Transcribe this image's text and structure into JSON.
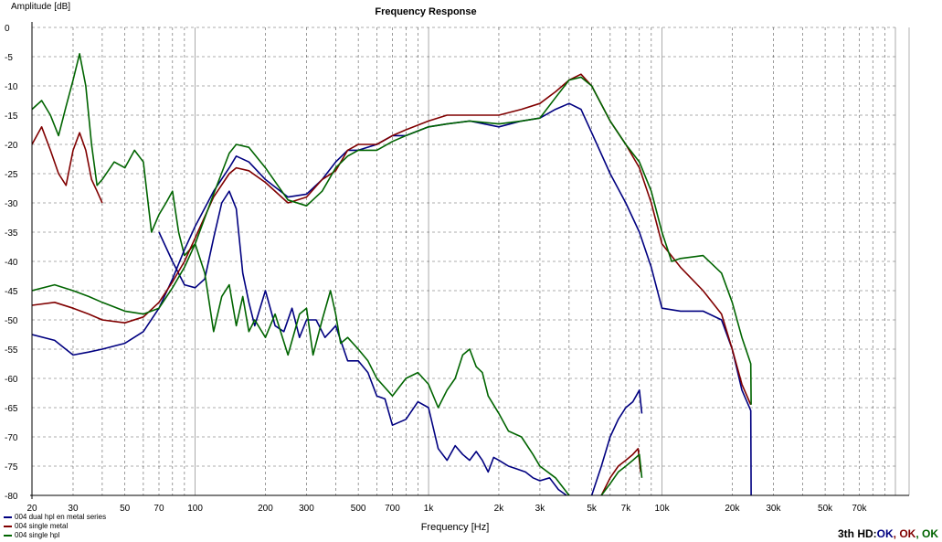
{
  "chart_data": {
    "type": "line",
    "title": "Frequency Response",
    "xlabel": "Frequency [Hz]",
    "ylabel": "Amplitude [dB]",
    "xscale": "log",
    "xlim": [
      20,
      100000
    ],
    "ylim": [
      -80,
      0
    ],
    "yticks": [
      0,
      -5,
      -10,
      -15,
      -20,
      -25,
      -30,
      -35,
      -40,
      -45,
      -50,
      -55,
      -60,
      -65,
      -70,
      -75,
      -80
    ],
    "yticklabels": [
      "0",
      "-5",
      "-10",
      "-15",
      "-20",
      "-25",
      "-30",
      "-35",
      "-40",
      "-45",
      "-50",
      "-55",
      "-60",
      "-65",
      "-70",
      "-75",
      "-80"
    ],
    "xticks": [
      20,
      30,
      50,
      70,
      100,
      200,
      300,
      500,
      700,
      1000,
      2000,
      3000,
      5000,
      7000,
      10000,
      20000,
      30000,
      50000,
      70000
    ],
    "xticklabels": [
      "20",
      "30",
      "50",
      "70",
      "100",
      "200",
      "300",
      "500",
      "700",
      "1k",
      "2k",
      "3k",
      "5k",
      "7k",
      "10k",
      "20k",
      "30k",
      "50k",
      "70k"
    ],
    "grid": true,
    "legend_position": "bottom-left",
    "series": [
      {
        "name": "004 dual hpl en metal series",
        "color": "#000080",
        "points": [
          [
            20,
            -52.5
          ],
          [
            25,
            -53.5
          ],
          [
            30,
            -56
          ],
          [
            35,
            -55.5
          ],
          [
            40,
            -55
          ],
          [
            50,
            -54
          ],
          [
            60,
            -52
          ],
          [
            70,
            -48
          ],
          [
            80,
            -43
          ],
          [
            90,
            -38
          ],
          [
            100,
            -34
          ],
          [
            120,
            -28
          ],
          [
            140,
            -24
          ],
          [
            150,
            -22
          ],
          [
            170,
            -23
          ],
          [
            200,
            -26
          ],
          [
            250,
            -29
          ],
          [
            300,
            -28.5
          ],
          [
            350,
            -26
          ],
          [
            400,
            -23
          ],
          [
            450,
            -21
          ],
          [
            500,
            -21
          ],
          [
            600,
            -20
          ],
          [
            700,
            -18.5
          ],
          [
            800,
            -18.5
          ],
          [
            1000,
            -17
          ],
          [
            1200,
            -16.5
          ],
          [
            1500,
            -16
          ],
          [
            2000,
            -17
          ],
          [
            2500,
            -16
          ],
          [
            3000,
            -15.5
          ],
          [
            3500,
            -14
          ],
          [
            4000,
            -13
          ],
          [
            4500,
            -14
          ],
          [
            5000,
            -18
          ],
          [
            6000,
            -25
          ],
          [
            7000,
            -30
          ],
          [
            8000,
            -35
          ],
          [
            9000,
            -41
          ],
          [
            10000,
            -48
          ],
          [
            12000,
            -48.5
          ],
          [
            15000,
            -48.5
          ],
          [
            18000,
            -50
          ],
          [
            20000,
            -55
          ],
          [
            22000,
            -62
          ],
          [
            24000,
            -65.5
          ],
          [
            24100,
            -80
          ]
        ]
      },
      {
        "name": "004 single metal",
        "color": "#800000",
        "points": [
          [
            20,
            -47.5
          ],
          [
            25,
            -47
          ],
          [
            30,
            -48
          ],
          [
            35,
            -49
          ],
          [
            40,
            -50
          ],
          [
            50,
            -50.5
          ],
          [
            60,
            -49.5
          ],
          [
            70,
            -47
          ],
          [
            80,
            -43.5
          ],
          [
            90,
            -40
          ],
          [
            100,
            -36
          ],
          [
            120,
            -29
          ],
          [
            140,
            -25
          ],
          [
            150,
            -24
          ],
          [
            170,
            -24.5
          ],
          [
            200,
            -26.5
          ],
          [
            250,
            -30
          ],
          [
            300,
            -29
          ],
          [
            350,
            -26
          ],
          [
            400,
            -24.5
          ],
          [
            450,
            -21
          ],
          [
            500,
            -20
          ],
          [
            600,
            -20
          ],
          [
            700,
            -18.5
          ],
          [
            800,
            -17.5
          ],
          [
            1000,
            -16
          ],
          [
            1200,
            -15
          ],
          [
            1500,
            -15
          ],
          [
            2000,
            -15
          ],
          [
            2500,
            -14
          ],
          [
            3000,
            -13
          ],
          [
            3500,
            -11
          ],
          [
            4000,
            -9
          ],
          [
            4500,
            -8
          ],
          [
            5000,
            -10
          ],
          [
            6000,
            -16
          ],
          [
            7000,
            -20
          ],
          [
            8000,
            -24
          ],
          [
            9000,
            -30
          ],
          [
            10000,
            -37
          ],
          [
            12000,
            -41
          ],
          [
            15000,
            -45
          ],
          [
            18000,
            -49
          ],
          [
            20000,
            -55
          ],
          [
            22000,
            -61
          ],
          [
            24000,
            -64.5
          ]
        ]
      },
      {
        "name": "004 single hpl",
        "color": "#006400",
        "points": [
          [
            20,
            -45
          ],
          [
            25,
            -44
          ],
          [
            30,
            -45
          ],
          [
            35,
            -46
          ],
          [
            40,
            -47
          ],
          [
            50,
            -48.5
          ],
          [
            60,
            -49
          ],
          [
            70,
            -48
          ],
          [
            80,
            -44.5
          ],
          [
            90,
            -41
          ],
          [
            100,
            -37
          ],
          [
            120,
            -28.5
          ],
          [
            140,
            -21.5
          ],
          [
            150,
            -20
          ],
          [
            170,
            -20.5
          ],
          [
            200,
            -24
          ],
          [
            250,
            -29.5
          ],
          [
            300,
            -30.5
          ],
          [
            350,
            -28
          ],
          [
            400,
            -24
          ],
          [
            450,
            -22
          ],
          [
            500,
            -21
          ],
          [
            600,
            -21
          ],
          [
            700,
            -19.5
          ],
          [
            800,
            -18.5
          ],
          [
            1000,
            -17
          ],
          [
            1200,
            -16.5
          ],
          [
            1500,
            -16
          ],
          [
            2000,
            -16.5
          ],
          [
            2500,
            -16
          ],
          [
            3000,
            -15.5
          ],
          [
            3500,
            -12
          ],
          [
            4000,
            -9
          ],
          [
            4500,
            -8.5
          ],
          [
            5000,
            -10
          ],
          [
            6000,
            -16
          ],
          [
            7000,
            -20
          ],
          [
            8000,
            -23
          ],
          [
            9000,
            -28
          ],
          [
            10000,
            -35
          ],
          [
            11000,
            -40
          ],
          [
            12000,
            -39.5
          ],
          [
            15000,
            -39
          ],
          [
            18000,
            -42
          ],
          [
            20000,
            -47
          ],
          [
            22000,
            -53
          ],
          [
            24000,
            -57.5
          ],
          [
            24100,
            -64.5
          ]
        ]
      }
    ],
    "harmonic_series": [
      {
        "series": "004 dual hpl en metal series",
        "color": "#000080",
        "points": [
          [
            70,
            -35
          ],
          [
            80,
            -40
          ],
          [
            90,
            -44
          ],
          [
            100,
            -44.5
          ],
          [
            110,
            -43
          ],
          [
            120,
            -36
          ],
          [
            130,
            -30
          ],
          [
            140,
            -28
          ],
          [
            150,
            -31
          ],
          [
            160,
            -42
          ],
          [
            170,
            -47
          ],
          [
            180,
            -51
          ],
          [
            200,
            -45
          ],
          [
            220,
            -51
          ],
          [
            240,
            -52
          ],
          [
            260,
            -48
          ],
          [
            280,
            -53
          ],
          [
            300,
            -50
          ],
          [
            330,
            -50
          ],
          [
            360,
            -53
          ],
          [
            400,
            -51
          ],
          [
            450,
            -57
          ],
          [
            500,
            -57
          ],
          [
            550,
            -59
          ],
          [
            600,
            -63
          ],
          [
            650,
            -63.5
          ],
          [
            700,
            -68
          ],
          [
            800,
            -67
          ],
          [
            900,
            -64
          ],
          [
            1000,
            -65
          ],
          [
            1100,
            -72
          ],
          [
            1200,
            -74
          ],
          [
            1300,
            -71.5
          ],
          [
            1400,
            -73
          ],
          [
            1500,
            -74
          ],
          [
            1600,
            -72.5
          ],
          [
            1700,
            -74
          ],
          [
            1800,
            -76
          ],
          [
            1900,
            -73.5
          ],
          [
            2000,
            -74
          ],
          [
            2200,
            -75
          ],
          [
            2400,
            -75.5
          ],
          [
            2600,
            -76
          ],
          [
            2800,
            -77
          ],
          [
            3000,
            -77.5
          ],
          [
            3300,
            -77
          ],
          [
            3600,
            -79
          ],
          [
            3900,
            -80
          ]
        ]
      },
      {
        "series": "004 single metal",
        "color": "#800000",
        "points": [
          [
            20,
            -20
          ],
          [
            22,
            -17
          ],
          [
            24,
            -21
          ],
          [
            26,
            -25
          ],
          [
            28,
            -27
          ],
          [
            30,
            -21
          ],
          [
            32,
            -18
          ],
          [
            34,
            -21
          ],
          [
            36,
            -26
          ],
          [
            38,
            -28
          ],
          [
            40,
            -30
          ]
        ]
      },
      {
        "series": "004 single hpl",
        "color": "#006400",
        "points": [
          [
            20,
            -14
          ],
          [
            22,
            -12.5
          ],
          [
            24,
            -15
          ],
          [
            26,
            -18.5
          ],
          [
            28,
            -13.5
          ],
          [
            30,
            -9
          ],
          [
            32,
            -4.5
          ],
          [
            34,
            -10
          ],
          [
            36,
            -20
          ],
          [
            38,
            -27
          ],
          [
            40,
            -26
          ],
          [
            45,
            -23
          ],
          [
            50,
            -24
          ],
          [
            55,
            -21
          ],
          [
            60,
            -23
          ],
          [
            65,
            -35
          ],
          [
            70,
            -32
          ],
          [
            75,
            -30
          ],
          [
            80,
            -28
          ],
          [
            85,
            -35
          ],
          [
            90,
            -39
          ],
          [
            100,
            -37
          ],
          [
            110,
            -42
          ],
          [
            120,
            -52
          ],
          [
            130,
            -46
          ],
          [
            140,
            -44
          ],
          [
            150,
            -51
          ],
          [
            160,
            -46
          ],
          [
            170,
            -52
          ],
          [
            180,
            -50
          ],
          [
            200,
            -53
          ],
          [
            220,
            -49
          ],
          [
            250,
            -56
          ],
          [
            280,
            -49
          ],
          [
            300,
            -48
          ],
          [
            320,
            -56
          ],
          [
            350,
            -50
          ],
          [
            380,
            -45
          ],
          [
            400,
            -49
          ],
          [
            420,
            -54
          ],
          [
            450,
            -53
          ],
          [
            500,
            -55
          ],
          [
            550,
            -57
          ],
          [
            600,
            -60
          ],
          [
            700,
            -63
          ],
          [
            800,
            -60
          ],
          [
            900,
            -59
          ],
          [
            1000,
            -61
          ],
          [
            1100,
            -65
          ],
          [
            1200,
            -62
          ],
          [
            1300,
            -60
          ],
          [
            1400,
            -56
          ],
          [
            1500,
            -55
          ],
          [
            1600,
            -58
          ],
          [
            1700,
            -59
          ],
          [
            1800,
            -63
          ],
          [
            2000,
            -66
          ],
          [
            2200,
            -69
          ],
          [
            2500,
            -70
          ],
          [
            2800,
            -73
          ],
          [
            3000,
            -75
          ],
          [
            3500,
            -77
          ],
          [
            4000,
            -80
          ]
        ]
      },
      {
        "series": "004 dual hpl en metal series",
        "color": "#000080",
        "points": [
          [
            5000,
            -80
          ],
          [
            5500,
            -75
          ],
          [
            6000,
            -70
          ],
          [
            6500,
            -67
          ],
          [
            7000,
            -65
          ],
          [
            7500,
            -64
          ],
          [
            8000,
            -62
          ],
          [
            8200,
            -66
          ]
        ]
      },
      {
        "series": "004 single metal",
        "color": "#800000",
        "points": [
          [
            5500,
            -80
          ],
          [
            6000,
            -77
          ],
          [
            6500,
            -75
          ],
          [
            7000,
            -74
          ],
          [
            7500,
            -73
          ],
          [
            7900,
            -72
          ],
          [
            8100,
            -76
          ]
        ]
      },
      {
        "series": "004 single hpl",
        "color": "#006400",
        "points": [
          [
            5500,
            -80
          ],
          [
            6000,
            -78
          ],
          [
            6500,
            -76
          ],
          [
            7000,
            -75
          ],
          [
            7500,
            -74
          ],
          [
            8000,
            -73
          ],
          [
            8200,
            -77
          ]
        ]
      }
    ]
  },
  "status": {
    "prefix": "3th HD:",
    "items": [
      {
        "text": "OK",
        "color": "#000080"
      },
      {
        "text": "OK",
        "color": "#800000"
      },
      {
        "text": "OK",
        "color": "#006400"
      }
    ],
    "separator": ", "
  }
}
